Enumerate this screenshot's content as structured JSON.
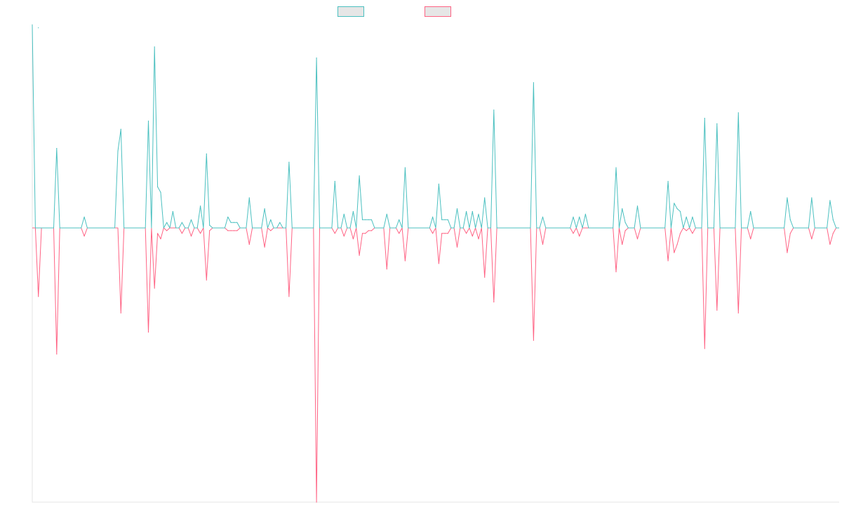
{
  "chart_data": {
    "type": "line",
    "title": "",
    "xlabel": "",
    "ylabel": "",
    "ylim": [
      -1,
      1
    ],
    "grid": false,
    "legend_placement": "top-center",
    "colors": {
      "pos": "#4bc0c0",
      "neg": "#ff6384",
      "axis": "#e5e5e5",
      "legend_fill": "#e6e6e6"
    },
    "series": [
      {
        "label": "",
        "color": "#4bc0c0",
        "values": []
      },
      {
        "label": "",
        "color": "#ff6384",
        "values": []
      }
    ],
    "events": [
      [
        0,
        0.74,
        0
      ],
      [
        2,
        0.73,
        0
      ],
      [
        2,
        0,
        -0.25
      ],
      [
        8,
        0.29,
        -0.46
      ],
      [
        17,
        0.04,
        -0.03
      ],
      [
        28,
        0.28,
        0
      ],
      [
        29,
        0.36,
        -0.31
      ],
      [
        38,
        0.39,
        -0.38
      ],
      [
        40,
        0.66,
        -0.22
      ],
      [
        41,
        0.15,
        -0.02
      ],
      [
        42,
        0.13,
        -0.04
      ],
      [
        44,
        0.02,
        -0.01
      ],
      [
        46,
        0.06,
        0
      ],
      [
        49,
        0.02,
        -0.02
      ],
      [
        52,
        0.03,
        -0.03
      ],
      [
        55,
        0.08,
        -0.02
      ],
      [
        57,
        0.27,
        -0.19
      ],
      [
        58,
        0.01,
        -0.01
      ],
      [
        64,
        0.04,
        -0.01
      ],
      [
        65,
        0.02,
        -0.01
      ],
      [
        66,
        0.02,
        -0.01
      ],
      [
        67,
        0.02,
        -0.01
      ],
      [
        71,
        0.11,
        -0.06
      ],
      [
        76,
        0.07,
        -0.07
      ],
      [
        78,
        0.03,
        -0.01
      ],
      [
        81,
        0.02,
        0
      ],
      [
        84,
        0.24,
        -0.25
      ],
      [
        93,
        0.62,
        -1.0
      ],
      [
        99,
        0.17,
        -0.02
      ],
      [
        102,
        0.05,
        -0.03
      ],
      [
        105,
        0.06,
        -0.04
      ],
      [
        107,
        0.19,
        -0.1
      ],
      [
        108,
        0.03,
        -0.02
      ],
      [
        109,
        0.03,
        -0.02
      ],
      [
        110,
        0.03,
        -0.01
      ],
      [
        111,
        0.03,
        -0.01
      ],
      [
        116,
        0.05,
        -0.15
      ],
      [
        120,
        0.03,
        -0.02
      ],
      [
        122,
        0.22,
        -0.12
      ],
      [
        131,
        0.04,
        -0.02
      ],
      [
        133,
        0.16,
        -0.13
      ],
      [
        134,
        0.03,
        -0.02
      ],
      [
        135,
        0.03,
        -0.02
      ],
      [
        136,
        0.03,
        -0.02
      ],
      [
        139,
        0.07,
        -0.07
      ],
      [
        142,
        0.06,
        -0.02
      ],
      [
        144,
        0.06,
        -0.03
      ],
      [
        146,
        0.05,
        -0.04
      ],
      [
        148,
        0.11,
        -0.18
      ],
      [
        151,
        0.43,
        -0.27
      ],
      [
        164,
        0.53,
        -0.41
      ],
      [
        167,
        0.04,
        -0.06
      ],
      [
        177,
        0.04,
        -0.02
      ],
      [
        179,
        0.04,
        -0.03
      ],
      [
        181,
        0.05,
        0
      ],
      [
        191,
        0.22,
        -0.16
      ],
      [
        193,
        0.07,
        -0.06
      ],
      [
        194,
        0.02,
        -0.01
      ],
      [
        198,
        0.08,
        -0.04
      ],
      [
        201,
        0.0,
        0.0
      ],
      [
        208,
        0.17,
        -0.12
      ],
      [
        210,
        0.09,
        -0.09
      ],
      [
        211,
        0.07,
        -0.06
      ],
      [
        212,
        0.06,
        -0.02
      ],
      [
        214,
        0.04,
        -0.01
      ],
      [
        216,
        0.04,
        -0.02
      ],
      [
        220,
        0.4,
        -0.44
      ],
      [
        224,
        0.38,
        -0.3
      ],
      [
        231,
        0.42,
        -0.31
      ],
      [
        235,
        0.06,
        -0.04
      ],
      [
        247,
        0.11,
        -0.09
      ],
      [
        248,
        0.03,
        -0.02
      ],
      [
        255,
        0.11,
        -0.04
      ],
      [
        261,
        0.1,
        -0.06
      ],
      [
        262,
        0.03,
        -0.02
      ]
    ],
    "x_domain": [
      0,
      264
    ]
  }
}
